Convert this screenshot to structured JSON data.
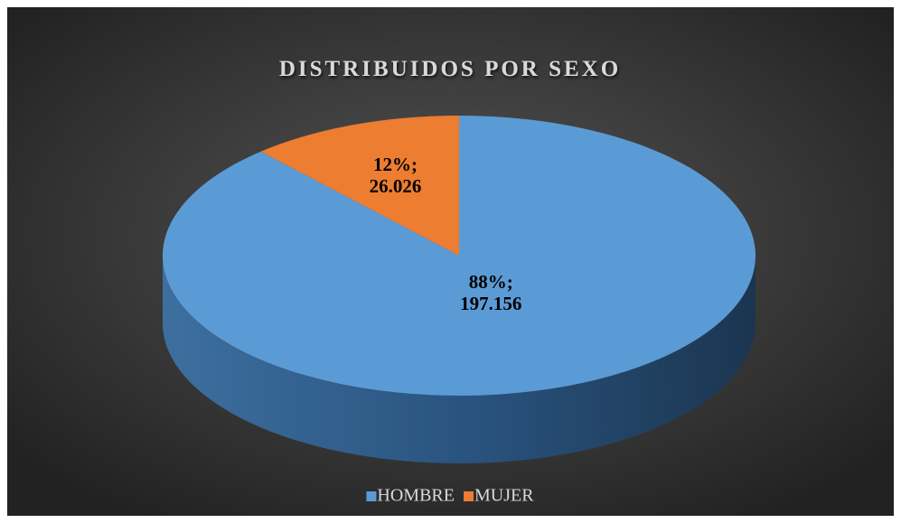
{
  "chart_data": {
    "type": "pie",
    "title": "DISTRIBUIDOS POR SEXO",
    "categories": [
      "HOMBRE",
      "MUJER"
    ],
    "values": [
      197156,
      26026
    ],
    "value_labels": [
      [
        "88%;",
        "197.156"
      ],
      [
        "12%;",
        "26.026"
      ]
    ],
    "colors": [
      "#5b9bd5",
      "#ed7d31"
    ],
    "legend": "bottom"
  }
}
